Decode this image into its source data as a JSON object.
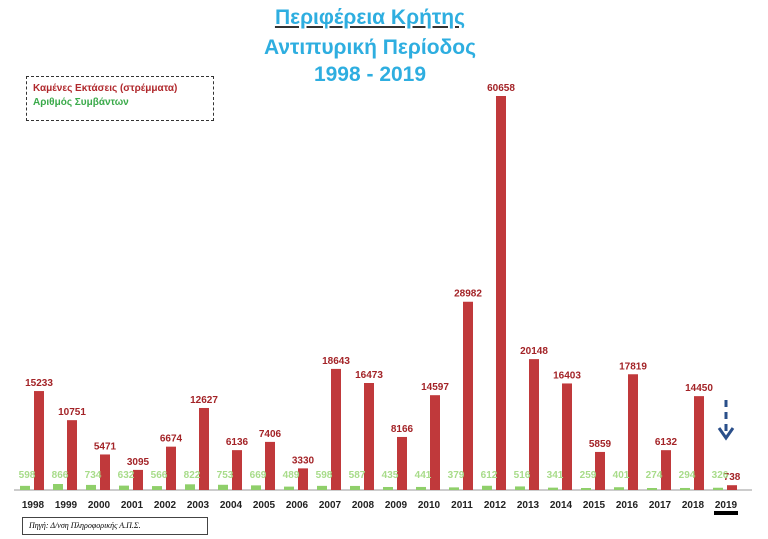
{
  "title": {
    "line1": "Περιφέρεια Κρήτης",
    "line2": "Αντιπυρική Περίοδος",
    "line3": "1998 - 2019"
  },
  "legend": {
    "burned": "Καμένες Εκτάσεις  (στρέμματα)",
    "incidents": "Αριθμός Συμβάντων"
  },
  "source": "Πηγή: Δ/νση Πληροφορικής Α.Π.Σ.",
  "colors": {
    "burned": "#c0393b",
    "incidents": "#8fcf6a",
    "title": "#2eaee0",
    "arrow": "#2a4f8a"
  },
  "chart_data": {
    "type": "bar",
    "title": "Περιφέρεια Κρήτης — Αντιπυρική Περίοδος 1998 - 2019",
    "categories": [
      "1998",
      "1999",
      "2000",
      "2001",
      "2002",
      "2003",
      "2004",
      "2005",
      "2006",
      "2007",
      "2008",
      "2009",
      "2010",
      "2011",
      "2012",
      "2013",
      "2014",
      "2015",
      "2016",
      "2017",
      "2018",
      "2019"
    ],
    "series": [
      {
        "name": "Καμένες Εκτάσεις  (στρέμματα)",
        "values": [
          15233,
          10751,
          5471,
          3095,
          6674,
          12627,
          6136,
          7406,
          3330,
          18643,
          16473,
          8166,
          14597,
          28982,
          60658,
          20148,
          16403,
          5859,
          17819,
          6132,
          14450,
          738
        ]
      },
      {
        "name": "Αριθμός Συμβάντων",
        "values": [
          598,
          866,
          734,
          632,
          566,
          822,
          753,
          669,
          489,
          598,
          587,
          435,
          441,
          379,
          612,
          516,
          341,
          259,
          401,
          274,
          294,
          326
        ]
      }
    ],
    "ylim": [
      0,
      62000
    ],
    "grid": false,
    "legend_position": "top-left",
    "highlight": "2019"
  }
}
